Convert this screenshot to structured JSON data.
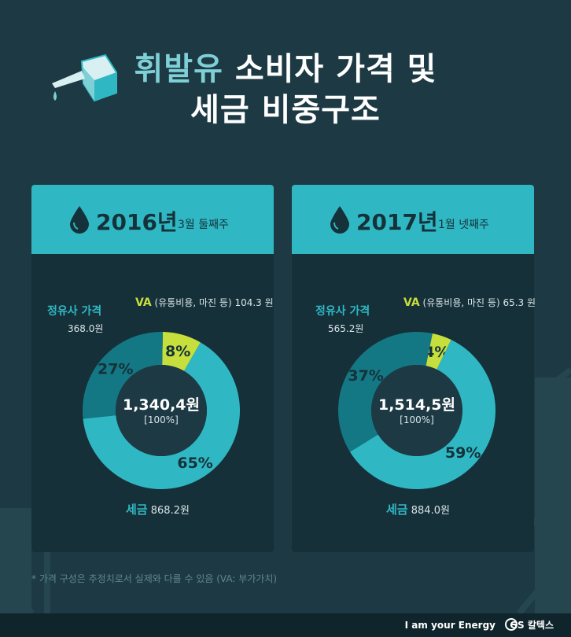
{
  "title": {
    "line1_accent": "휘발유",
    "line1_rest": " 소비자 가격 및",
    "line2": "세금 비중구조"
  },
  "colors": {
    "background": "#1d3a44",
    "header": "#2fb8c3",
    "company": "#137883",
    "va": "#c7df3c",
    "tax": "#2fb8c3"
  },
  "chart_data": [
    {
      "type": "pie",
      "year_label": "2016년",
      "period": "3월 둘째주",
      "total": "1,340,4원",
      "total_pct": "[100%]",
      "slices": [
        {
          "key": "va",
          "name": "VA",
          "note": " (유통비용, 마진 등) ",
          "amount": "104.3 원",
          "percent": 8,
          "label": "8%",
          "color": "#c7df3c"
        },
        {
          "key": "tax",
          "name": "세금",
          "note": "",
          "amount": "868.2원",
          "percent": 65,
          "label": "65%",
          "color": "#2fb8c3"
        },
        {
          "key": "company",
          "name": "정유사 가격",
          "note": "",
          "amount": "368.0원",
          "percent": 27,
          "label": "27%",
          "color": "#137883"
        }
      ]
    },
    {
      "type": "pie",
      "year_label": "2017년",
      "period": "1월 넷째주",
      "total": "1,514,5원",
      "total_pct": "[100%]",
      "slices": [
        {
          "key": "va",
          "name": "VA",
          "note": " (유통비용, 마진 등) ",
          "amount": "65.3 원",
          "percent": 4,
          "label": "4%",
          "color": "#c7df3c"
        },
        {
          "key": "tax",
          "name": "세금",
          "note": "",
          "amount": "884.0원",
          "percent": 59,
          "label": "59%",
          "color": "#2fb8c3"
        },
        {
          "key": "company",
          "name": "정유사 가격",
          "note": "",
          "amount": "565.2원",
          "percent": 37,
          "label": "37%",
          "color": "#137883"
        }
      ]
    }
  ],
  "footnote": "* 가격 구성은 추정치로서 실제와 다를 수 있음 (VA: 부가가치)",
  "brand": {
    "slogan": "I am your Energy",
    "logo": "GS 칼텍스"
  }
}
